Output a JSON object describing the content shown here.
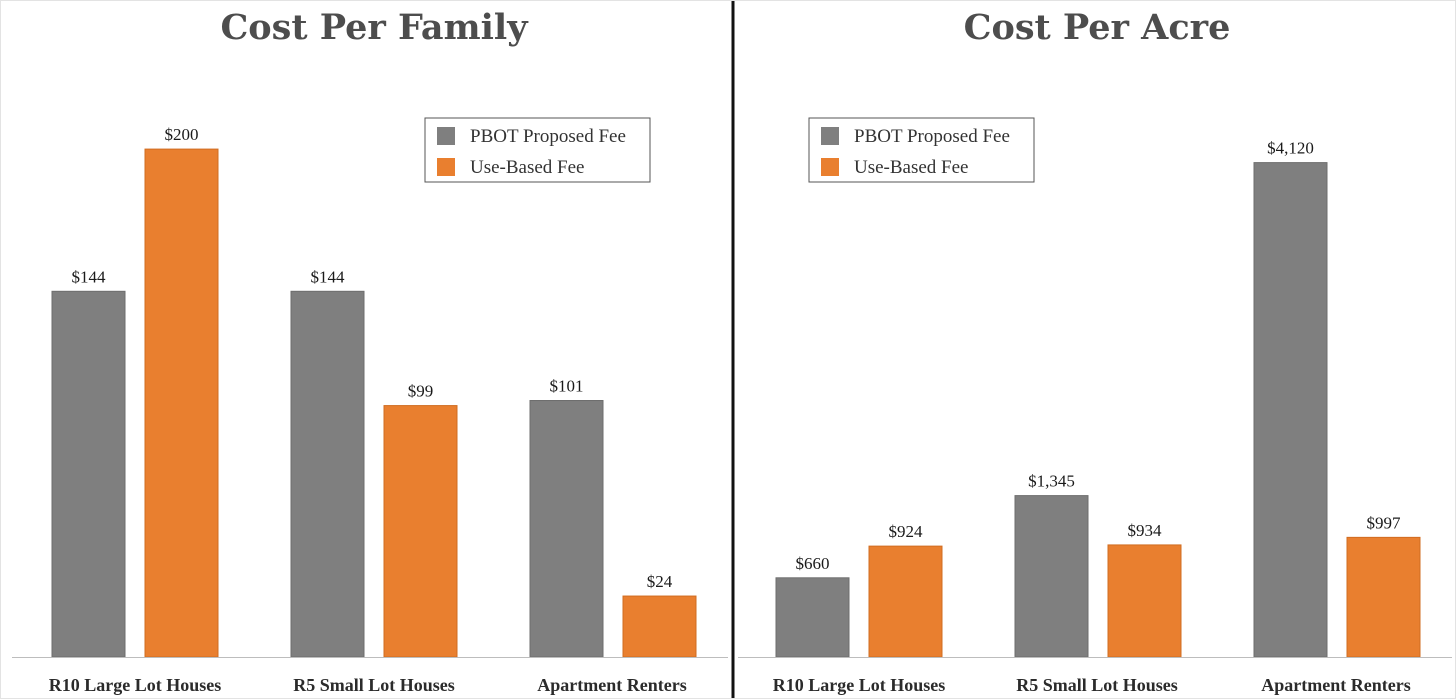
{
  "colors": {
    "pbot": "#7f7f7f",
    "use_based": "#e97f2f",
    "axis": "#bdbdbd",
    "divider": "#111111"
  },
  "chart_data": [
    {
      "type": "bar",
      "title": "Cost Per Family",
      "categories": [
        "R10 Large Lot Houses",
        "R5 Small Lot Houses",
        "Apartment Renters"
      ],
      "series": [
        {
          "name": "PBOT Proposed Fee",
          "values": [
            144,
            144,
            101
          ],
          "labels": [
            "$144",
            "$144",
            "$101"
          ]
        },
        {
          "name": "Use-Based Fee",
          "values": [
            200,
            99,
            24
          ],
          "labels": [
            "$200",
            "$99",
            "$24"
          ]
        }
      ],
      "xlabel": "",
      "ylabel": "",
      "ylim": [
        0,
        215
      ],
      "grid": false,
      "legend": "top-right"
    },
    {
      "type": "bar",
      "title": "Cost Per Acre",
      "categories": [
        "R10 Large Lot Houses",
        "R5 Small Lot Houses",
        "Apartment Renters"
      ],
      "series": [
        {
          "name": "PBOT Proposed Fee",
          "values": [
            660,
            1345,
            4120
          ],
          "labels": [
            "$660",
            "$1,345",
            "$4,120"
          ]
        },
        {
          "name": "Use-Based Fee",
          "values": [
            924,
            934,
            997
          ],
          "labels": [
            "$924",
            "$934",
            "$997"
          ]
        }
      ],
      "xlabel": "",
      "ylabel": "",
      "ylim": [
        0,
        4550
      ],
      "grid": false,
      "legend": "top-left"
    }
  ]
}
